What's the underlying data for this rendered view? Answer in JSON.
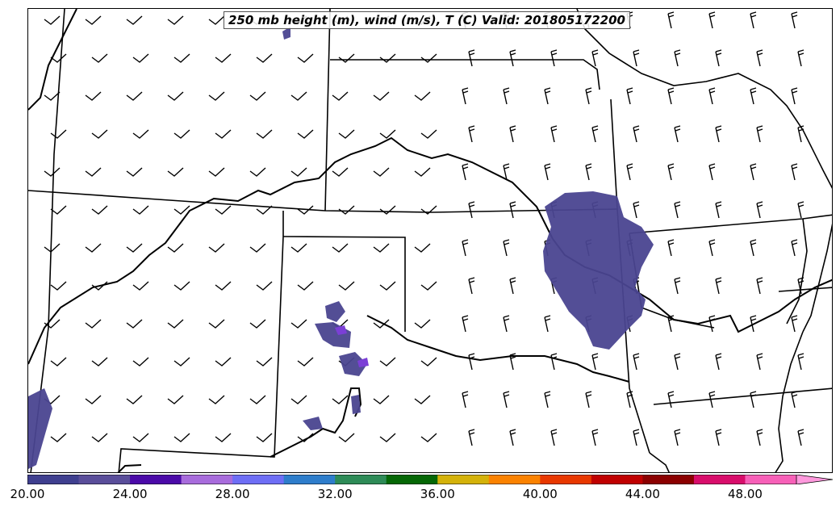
{
  "title": "250 mb height (m), wind (m/s), T (C) Valid: 201805172200",
  "colorbar": {
    "tick_labels": [
      "20.00",
      "24.00",
      "28.00",
      "32.00",
      "36.00",
      "40.00",
      "44.00",
      "48.00"
    ],
    "tick_values": [
      20,
      24,
      28,
      32,
      36,
      40,
      44,
      48
    ],
    "min": 20,
    "max": 51.5,
    "colors": [
      "#3f3f8f",
      "#5a4e9a",
      "#4b0aa8",
      "#a86cdc",
      "#6e6ef5",
      "#2e7dcb",
      "#2e8b57",
      "#056705",
      "#d4b20a",
      "#fb8200",
      "#e83800",
      "#c00000",
      "#8b0000",
      "#d80d6b",
      "#f760b8",
      "#ff99dd"
    ]
  },
  "map": {
    "contour_color": "#000000",
    "shade_color": "#4a4590",
    "highlight_color": "#7b3fd6"
  }
}
